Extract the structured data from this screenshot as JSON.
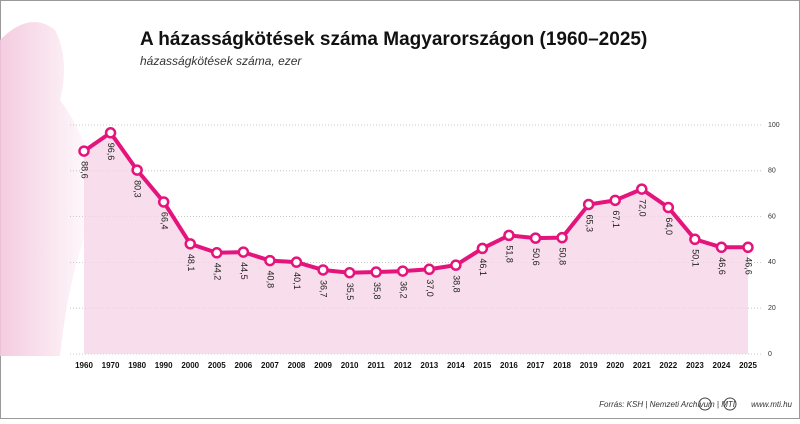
{
  "chart_data": {
    "type": "line",
    "title": "A házasságkötések száma Magyarországon (1960–2025)",
    "subtitle": "házasságkötések száma, ezer",
    "categories": [
      "1960",
      "1970",
      "1980",
      "1990",
      "2000",
      "2005",
      "2006",
      "2007",
      "2008",
      "2009",
      "2010",
      "2011",
      "2012",
      "2013",
      "2014",
      "2015",
      "2016",
      "2017",
      "2018",
      "2019",
      "2020",
      "2021",
      "2022",
      "2023",
      "2024",
      "2025"
    ],
    "values": [
      88.6,
      96.6,
      80.3,
      66.4,
      48.1,
      44.2,
      44.5,
      40.8,
      40.1,
      36.7,
      35.5,
      35.8,
      36.2,
      37.0,
      38.8,
      46.1,
      51.8,
      50.6,
      50.8,
      65.3,
      67.1,
      72.0,
      64.0,
      50.1,
      46.6,
      46.6
    ],
    "value_labels": [
      "88,6",
      "96,6",
      "80,3",
      "66,4",
      "48,1",
      "44,2",
      "44,5",
      "40,8",
      "40,1",
      "36,7",
      "35,5",
      "35,8",
      "36,2",
      "37,0",
      "38,8",
      "46,1",
      "51,8",
      "50,6",
      "50,8",
      "65,3",
      "67,1",
      "72,0",
      "64,0",
      "50,1",
      "46,6",
      "46,6"
    ],
    "color": "#e4147c",
    "area_color": "#f6d3e5",
    "ylim": [
      0,
      100
    ],
    "yticks": [
      0,
      20,
      40,
      60,
      80,
      100
    ],
    "grid": true,
    "source": "Forrás: KSH | Nemzeti Archívum | MTI",
    "website": "www.mti.hu"
  }
}
